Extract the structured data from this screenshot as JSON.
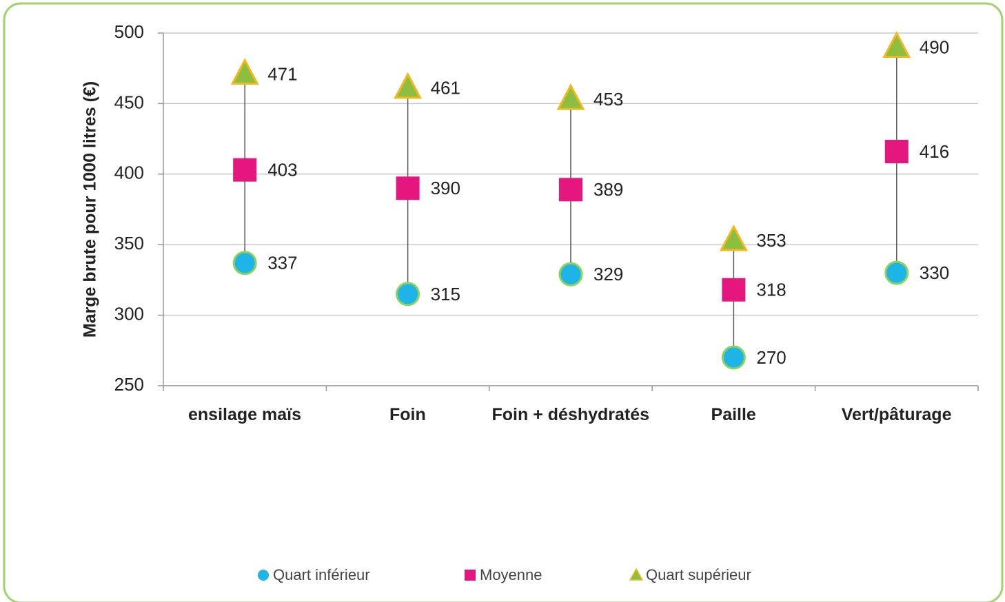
{
  "chart_data": {
    "type": "highlow",
    "y_label": "Marge brute pour 1000 litres (€)",
    "categories": [
      "ensilage maïs",
      "Foin",
      "Foin + déshydratés",
      "Paille",
      "Vert/pâturage"
    ],
    "series": [
      {
        "name": "Quart inférieur",
        "marker": "circle",
        "color": "#1eb4e8",
        "values": [
          337,
          315,
          329,
          270,
          330
        ]
      },
      {
        "name": "Moyenne",
        "marker": "square",
        "color": "#e5177f",
        "values": [
          403,
          390,
          389,
          318,
          416
        ]
      },
      {
        "name": "Quart supérieur",
        "marker": "triangle",
        "color": "#8cbf3f",
        "values": [
          471,
          461,
          453,
          353,
          490
        ]
      }
    ],
    "ylim": [
      250,
      500
    ],
    "yticks": [
      250,
      300,
      350,
      400,
      450,
      500
    ],
    "grid": true
  }
}
